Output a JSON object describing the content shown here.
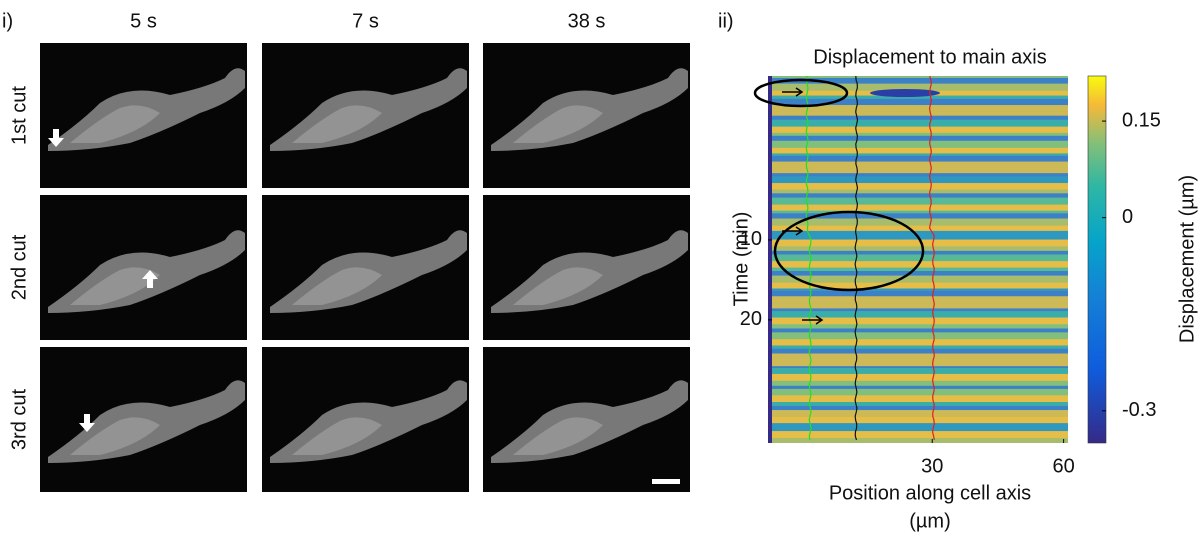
{
  "panel_i": {
    "label": "i)",
    "columns": [
      "5 s",
      "7 s",
      "38 s"
    ],
    "rows": [
      "1st cut",
      "2nd cut",
      "3rd cut"
    ]
  },
  "chart_data": {
    "type": "heatmap",
    "panel_label": "ii)",
    "title": "Displacement to main axis",
    "x_label": [
      "Position along cell axis",
      "(µm)"
    ],
    "y_label": "Time (min)",
    "xlim": [
      -7.5,
      61
    ],
    "xticks": [
      30,
      60
    ],
    "ylim": [
      -10.5,
      35.4
    ],
    "yticks": [
      10,
      20
    ],
    "colorbar_label": "Displacement (µm)",
    "clim": [
      -0.35,
      0.22
    ],
    "cticks": [
      0.15,
      0,
      -0.3
    ]
  }
}
